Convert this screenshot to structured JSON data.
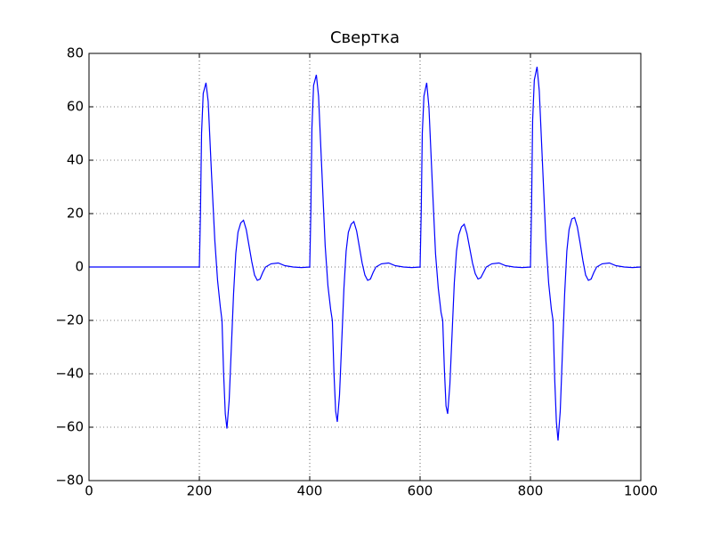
{
  "chart_data": {
    "type": "line",
    "title": "Свертка",
    "x": [
      0,
      200,
      202,
      204,
      207,
      212,
      216,
      222,
      228,
      233,
      238,
      241,
      244,
      247,
      250,
      254,
      258,
      262,
      266,
      270,
      275,
      280,
      285,
      290,
      295,
      300,
      305,
      310,
      315,
      320,
      330,
      343,
      355,
      370,
      385,
      400,
      402,
      404,
      407,
      412,
      416,
      422,
      428,
      433,
      438,
      441,
      444,
      447,
      450,
      454,
      458,
      462,
      466,
      470,
      475,
      480,
      485,
      490,
      495,
      500,
      505,
      510,
      515,
      520,
      530,
      543,
      555,
      570,
      585,
      600,
      602,
      604,
      607,
      612,
      616,
      622,
      628,
      633,
      638,
      641,
      644,
      647,
      650,
      654,
      658,
      662,
      666,
      670,
      675,
      680,
      685,
      690,
      695,
      700,
      705,
      710,
      715,
      720,
      730,
      743,
      755,
      770,
      785,
      800,
      802,
      804,
      807,
      812,
      816,
      822,
      828,
      833,
      838,
      841,
      844,
      847,
      850,
      854,
      858,
      862,
      866,
      870,
      875,
      880,
      885,
      890,
      895,
      900,
      905,
      910,
      915,
      920,
      930,
      943,
      955,
      970,
      985,
      1000
    ],
    "series": [
      {
        "name": "Свертка",
        "color": "#0000ff",
        "values": [
          0,
          0,
          20,
          50,
          65,
          69,
          62,
          35,
          10,
          -5,
          -15,
          -20,
          -40,
          -55,
          -60.5,
          -50,
          -30,
          -10,
          5,
          13,
          16.5,
          17.5,
          14,
          8,
          2,
          -3,
          -5,
          -4.5,
          -2,
          0,
          1.2,
          1.5,
          0.5,
          0,
          -0.2,
          0,
          20,
          52,
          68,
          72,
          64,
          36,
          8,
          -7,
          -16,
          -20,
          -40,
          -54,
          -58,
          -48,
          -28,
          -8,
          6,
          13,
          16,
          17,
          13.5,
          7.5,
          1.5,
          -3,
          -5,
          -4.5,
          -2,
          0,
          1.2,
          1.5,
          0.5,
          0,
          -0.2,
          0,
          20,
          50,
          64,
          69,
          60,
          32,
          5,
          -8,
          -17,
          -20,
          -38,
          -52,
          -55,
          -44,
          -25,
          -6,
          6,
          12,
          15,
          16,
          12.5,
          7,
          1.5,
          -2.5,
          -4.5,
          -4,
          -2,
          0,
          1.2,
          1.5,
          0.5,
          0,
          -0.2,
          0,
          22,
          55,
          70,
          75,
          66,
          38,
          10,
          -6,
          -16,
          -20,
          -42,
          -58,
          -65,
          -54,
          -32,
          -10,
          6,
          14,
          18,
          18.5,
          15,
          9,
          2.5,
          -3,
          -5,
          -4.5,
          -2,
          0,
          1.2,
          1.5,
          0.5,
          0,
          -0.2,
          0
        ]
      }
    ],
    "xlim": [
      0,
      1000
    ],
    "xticks": [
      0,
      200,
      400,
      600,
      800,
      1000
    ],
    "ylim": [
      -80,
      80
    ],
    "yticks": [
      {
        "value": -80,
        "label": "−80"
      },
      {
        "value": -60,
        "label": "−60"
      },
      {
        "value": -40,
        "label": "−40"
      },
      {
        "value": -20,
        "label": "−20"
      },
      0,
      20,
      40,
      60,
      80
    ],
    "grid": true
  }
}
